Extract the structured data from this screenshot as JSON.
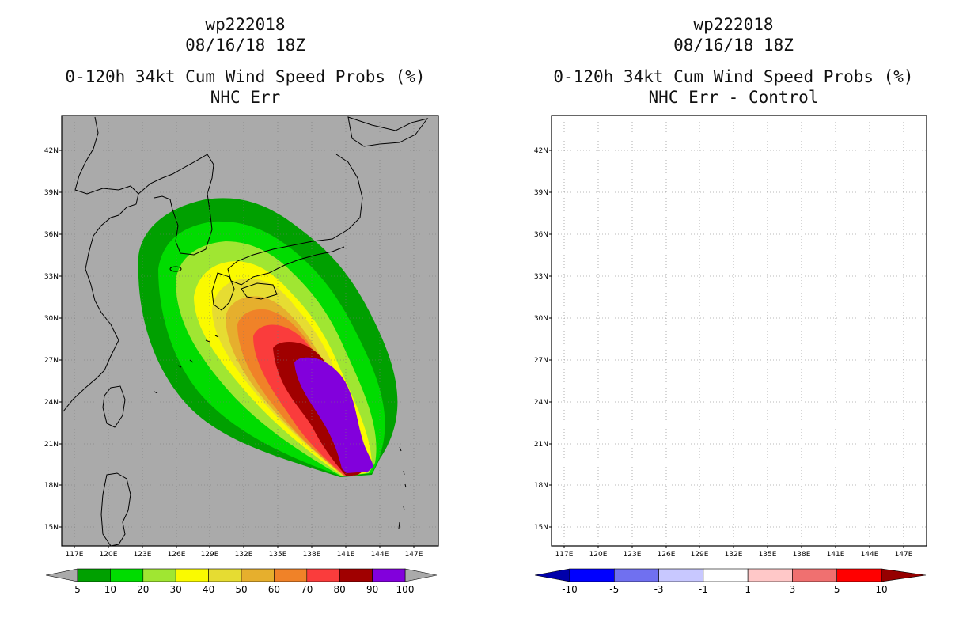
{
  "left_panel": {
    "storm_id": "wp222018",
    "datetime": "08/16/18 18Z",
    "product": "0-120h 34kt Cum Wind Speed Probs (%)",
    "subtitle": "NHC Err",
    "colorbar": {
      "labels": [
        "5",
        "10",
        "20",
        "30",
        "40",
        "50",
        "60",
        "70",
        "80",
        "90",
        "100"
      ],
      "colors": [
        "#00a000",
        "#00dc00",
        "#a0e632",
        "#fafa00",
        "#e6dc32",
        "#e6af2d",
        "#f08228",
        "#fa3c3c",
        "#a00000",
        "#8200dc"
      ]
    }
  },
  "right_panel": {
    "storm_id": "wp222018",
    "datetime": "08/16/18 18Z",
    "product": "0-120h 34kt Cum Wind Speed Probs (%)",
    "subtitle": "NHC Err - Control",
    "colorbar": {
      "labels": [
        "-10",
        "-5",
        "-3",
        "-1",
        "1",
        "3",
        "5",
        "10"
      ],
      "colors": [
        "#0000aa",
        "#0000ff",
        "#7070f0",
        "#c8c8ff",
        "#ffffff",
        "#ffc8c8",
        "#f07070",
        "#ff0000",
        "#960000"
      ]
    }
  },
  "axes": {
    "lat_labels": [
      "42N",
      "39N",
      "36N",
      "33N",
      "30N",
      "27N",
      "24N",
      "21N",
      "18N",
      "15N"
    ],
    "lon_labels": [
      "117E",
      "120E",
      "123E",
      "126E",
      "129E",
      "132E",
      "135E",
      "138E",
      "141E",
      "144E",
      "147E"
    ]
  },
  "chart_data": {
    "type": "heatmap",
    "storm": "wp222018",
    "valid": "08/16/18 18Z",
    "variable": "0-120h 34kt cumulative wind speed probability (%)",
    "lon_range": [
      116.5,
      148
    ],
    "lat_range": [
      13.5,
      44.5
    ],
    "levels": [
      5,
      10,
      20,
      30,
      40,
      50,
      60,
      70,
      80,
      90,
      100
    ],
    "max_region": {
      "lon": [
        137,
        143.5
      ],
      "lat": [
        19,
        27
      ],
      "value": ">=90"
    },
    "difference_panel": "NHC Err - Control: no differences shown"
  }
}
